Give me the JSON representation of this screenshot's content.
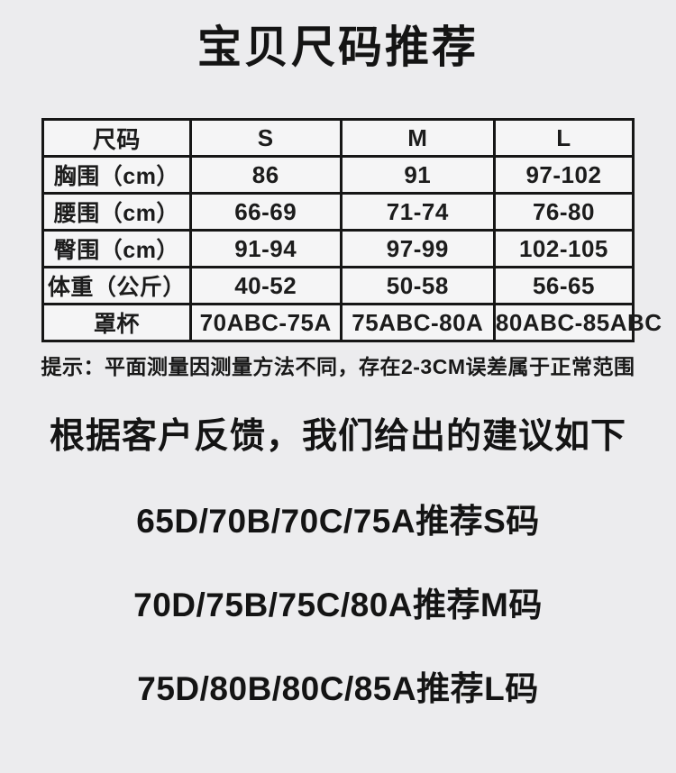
{
  "colors": {
    "page_background": "#ececee",
    "cell_background": "#f5f5f6",
    "table_border": "#161616",
    "text": "#141414"
  },
  "title": "宝贝尺码推荐",
  "size_table": {
    "columns": [
      "尺码",
      "S",
      "M",
      "L"
    ],
    "rows": [
      {
        "label": "胸围（cm）",
        "values": [
          "86",
          "91",
          "97-102"
        ]
      },
      {
        "label": "腰围（cm）",
        "values": [
          "66-69",
          "71-74",
          "76-80"
        ]
      },
      {
        "label": "臀围（cm）",
        "values": [
          "91-94",
          "97-99",
          "102-105"
        ]
      },
      {
        "label": "体重（公斤）",
        "values": [
          "40-52",
          "50-58",
          "56-65"
        ]
      },
      {
        "label": "罩杯",
        "values": [
          "70ABC-75A",
          "75ABC-80A",
          "80ABC-85ABC"
        ]
      }
    ]
  },
  "note": "提示：平面测量因测量方法不同，存在2-3CM误差属于正常范围",
  "subtitle": "根据客户反馈，我们给出的建议如下",
  "recommendations": [
    "65D/70B/70C/75A推荐S码",
    "70D/75B/75C/80A推荐M码",
    "75D/80B/80C/85A推荐L码"
  ]
}
